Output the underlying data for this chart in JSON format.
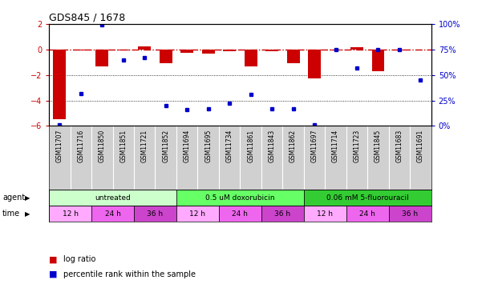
{
  "title": "GDS845 / 1678",
  "samples": [
    "GSM11707",
    "GSM11716",
    "GSM11850",
    "GSM11851",
    "GSM11721",
    "GSM11852",
    "GSM11694",
    "GSM11695",
    "GSM11734",
    "GSM11861",
    "GSM11843",
    "GSM11862",
    "GSM11697",
    "GSM11714",
    "GSM11723",
    "GSM11845",
    "GSM11683",
    "GSM11691"
  ],
  "log_ratio": [
    -5.5,
    -0.05,
    -1.3,
    -0.05,
    0.25,
    -1.1,
    -0.25,
    -0.3,
    -0.15,
    -1.3,
    -0.15,
    -1.1,
    -2.3,
    -0.1,
    0.2,
    -1.7,
    -0.05,
    0.0
  ],
  "percentile": [
    1,
    32,
    99,
    65,
    67,
    20,
    16,
    17,
    22,
    31,
    17,
    17,
    1,
    75,
    57,
    75,
    75,
    45
  ],
  "ylim_left": [
    -6,
    2
  ],
  "ylim_right": [
    0,
    100
  ],
  "yticks_left": [
    -6,
    -4,
    -2,
    0,
    2
  ],
  "yticks_right": [
    0,
    25,
    50,
    75,
    100
  ],
  "agent_groups": [
    {
      "label": "untreated",
      "start": 0,
      "end": 6,
      "color": "#ccffcc"
    },
    {
      "label": "0.5 uM doxorubicin",
      "start": 6,
      "end": 12,
      "color": "#66ff66"
    },
    {
      "label": "0.06 mM 5-fluorouracil",
      "start": 12,
      "end": 18,
      "color": "#33cc33"
    }
  ],
  "time_groups": [
    {
      "label": "12 h",
      "start": 0,
      "end": 2,
      "color": "#ffaaff"
    },
    {
      "label": "24 h",
      "start": 2,
      "end": 4,
      "color": "#ee66ee"
    },
    {
      "label": "36 h",
      "start": 4,
      "end": 6,
      "color": "#cc44cc"
    },
    {
      "label": "12 h",
      "start": 6,
      "end": 8,
      "color": "#ffaaff"
    },
    {
      "label": "24 h",
      "start": 8,
      "end": 10,
      "color": "#ee66ee"
    },
    {
      "label": "36 h",
      "start": 10,
      "end": 12,
      "color": "#cc44cc"
    },
    {
      "label": "12 h",
      "start": 12,
      "end": 14,
      "color": "#ffaaff"
    },
    {
      "label": "24 h",
      "start": 14,
      "end": 16,
      "color": "#ee66ee"
    },
    {
      "label": "36 h",
      "start": 16,
      "end": 18,
      "color": "#cc44cc"
    }
  ],
  "bar_color": "#cc0000",
  "dot_color": "#0000cc",
  "ref_line_color": "#cc0000",
  "grid_color": "#000000",
  "tick_label_color_left": "#cc0000",
  "tick_label_color_right": "#0000cc",
  "background_color": "#ffffff",
  "sample_box_color": "#cccccc",
  "bar_width": 0.6,
  "figsize": [
    6.11,
    3.75
  ],
  "dpi": 100
}
